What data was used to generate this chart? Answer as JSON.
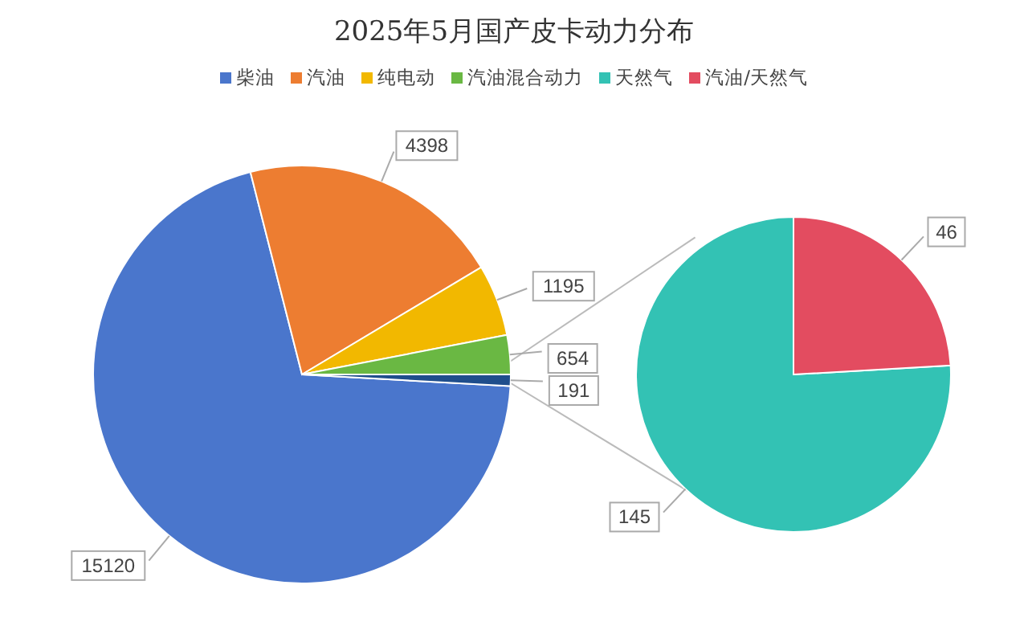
{
  "chart_data": [
    {
      "type": "pie",
      "title": "2025年5月国产皮卡动力分布",
      "categories": [
        "柴油",
        "汽油",
        "纯电动",
        "汽油混合动力",
        null
      ],
      "values": [
        15120,
        4398,
        1195,
        654,
        191
      ],
      "colors": [
        "#4a76cc",
        "#ed7d31",
        "#f2b800",
        "#6ab843",
        "#1f4e8c"
      ],
      "data_labels": true,
      "legend": "top"
    },
    {
      "type": "pie",
      "categories": [
        "天然气",
        "汽油/天然气"
      ],
      "values": [
        145,
        46
      ],
      "colors": [
        "#33c2b4",
        "#e34c60"
      ],
      "data_labels": true,
      "legend": "top"
    }
  ]
}
